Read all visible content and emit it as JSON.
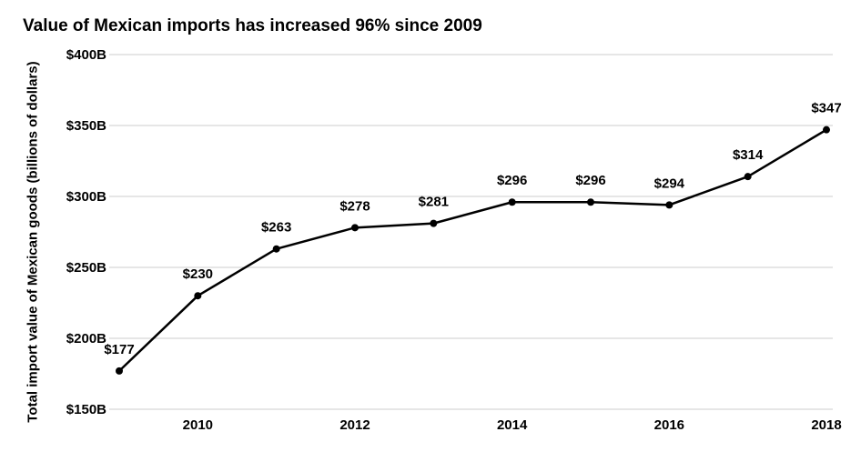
{
  "chart_data": {
    "type": "line",
    "title": "Value of Mexican imports has increased 96% since 2009",
    "xlabel": "",
    "ylabel": "Total import value of Mexican goods  (billions of dollars)",
    "x": [
      2009,
      2010,
      2011,
      2012,
      2013,
      2014,
      2015,
      2016,
      2017,
      2018
    ],
    "xticks": [
      2010,
      2012,
      2014,
      2016,
      2018
    ],
    "xlim": [
      2009,
      2018
    ],
    "ylim": [
      150,
      400
    ],
    "yticks": [
      150,
      200,
      250,
      300,
      350,
      400
    ],
    "ytick_labels": [
      "$150B",
      "$200B",
      "$250B",
      "$300B",
      "$350B",
      "$400B"
    ],
    "series": [
      {
        "values": [
          177,
          230,
          263,
          278,
          281,
          296,
          296,
          294,
          314,
          347
        ],
        "labels": [
          "$177",
          "$230",
          "$263",
          "$278",
          "$281",
          "$296",
          "$296",
          "$294",
          "$314",
          "$347"
        ]
      }
    ],
    "grid": true,
    "line_color": "#000000",
    "grid_color": "#cccccc"
  }
}
